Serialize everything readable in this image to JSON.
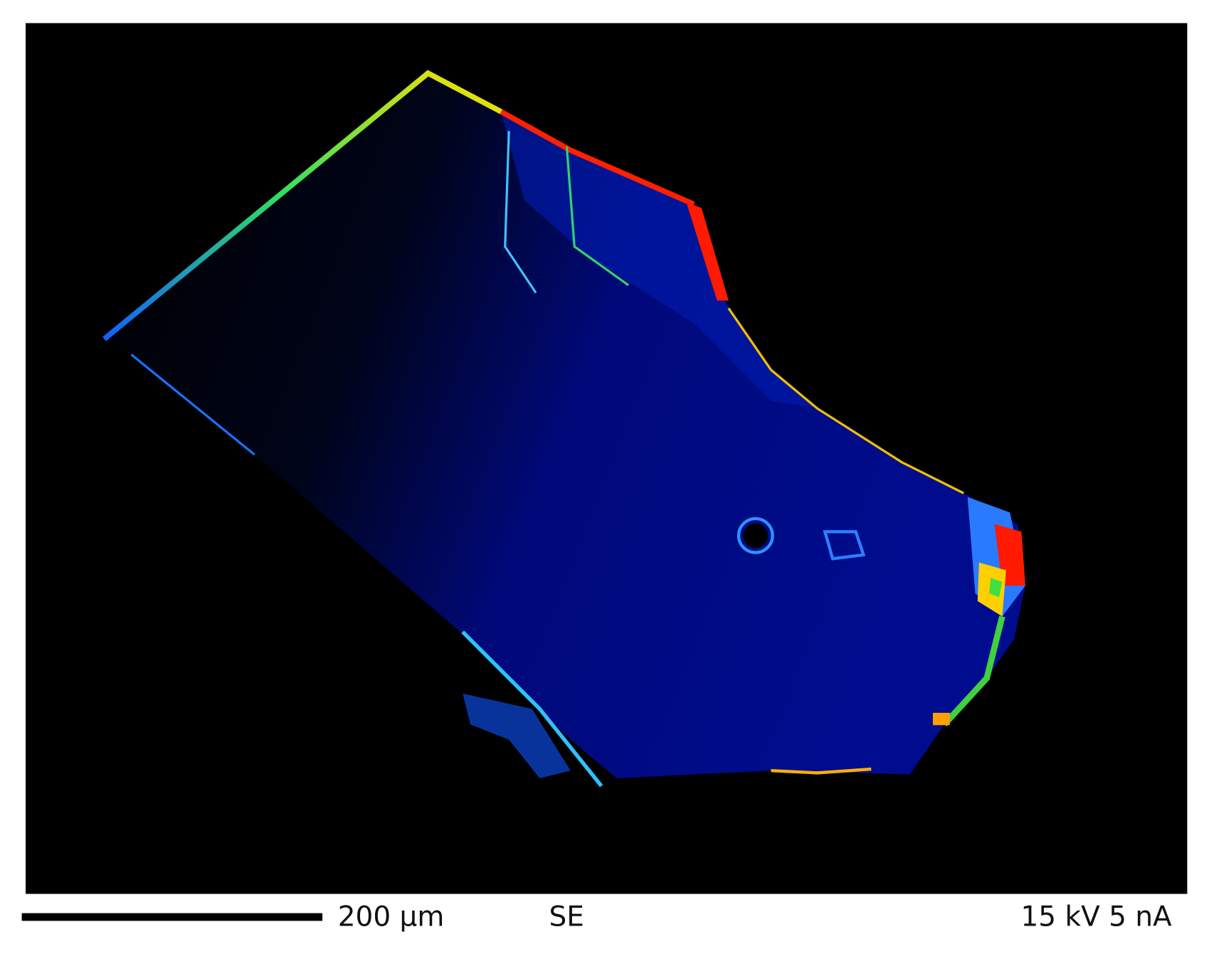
{
  "image": {
    "scale_bar": "200 µm",
    "detector": "SE",
    "conditions": "15 kV 5 nA"
  }
}
